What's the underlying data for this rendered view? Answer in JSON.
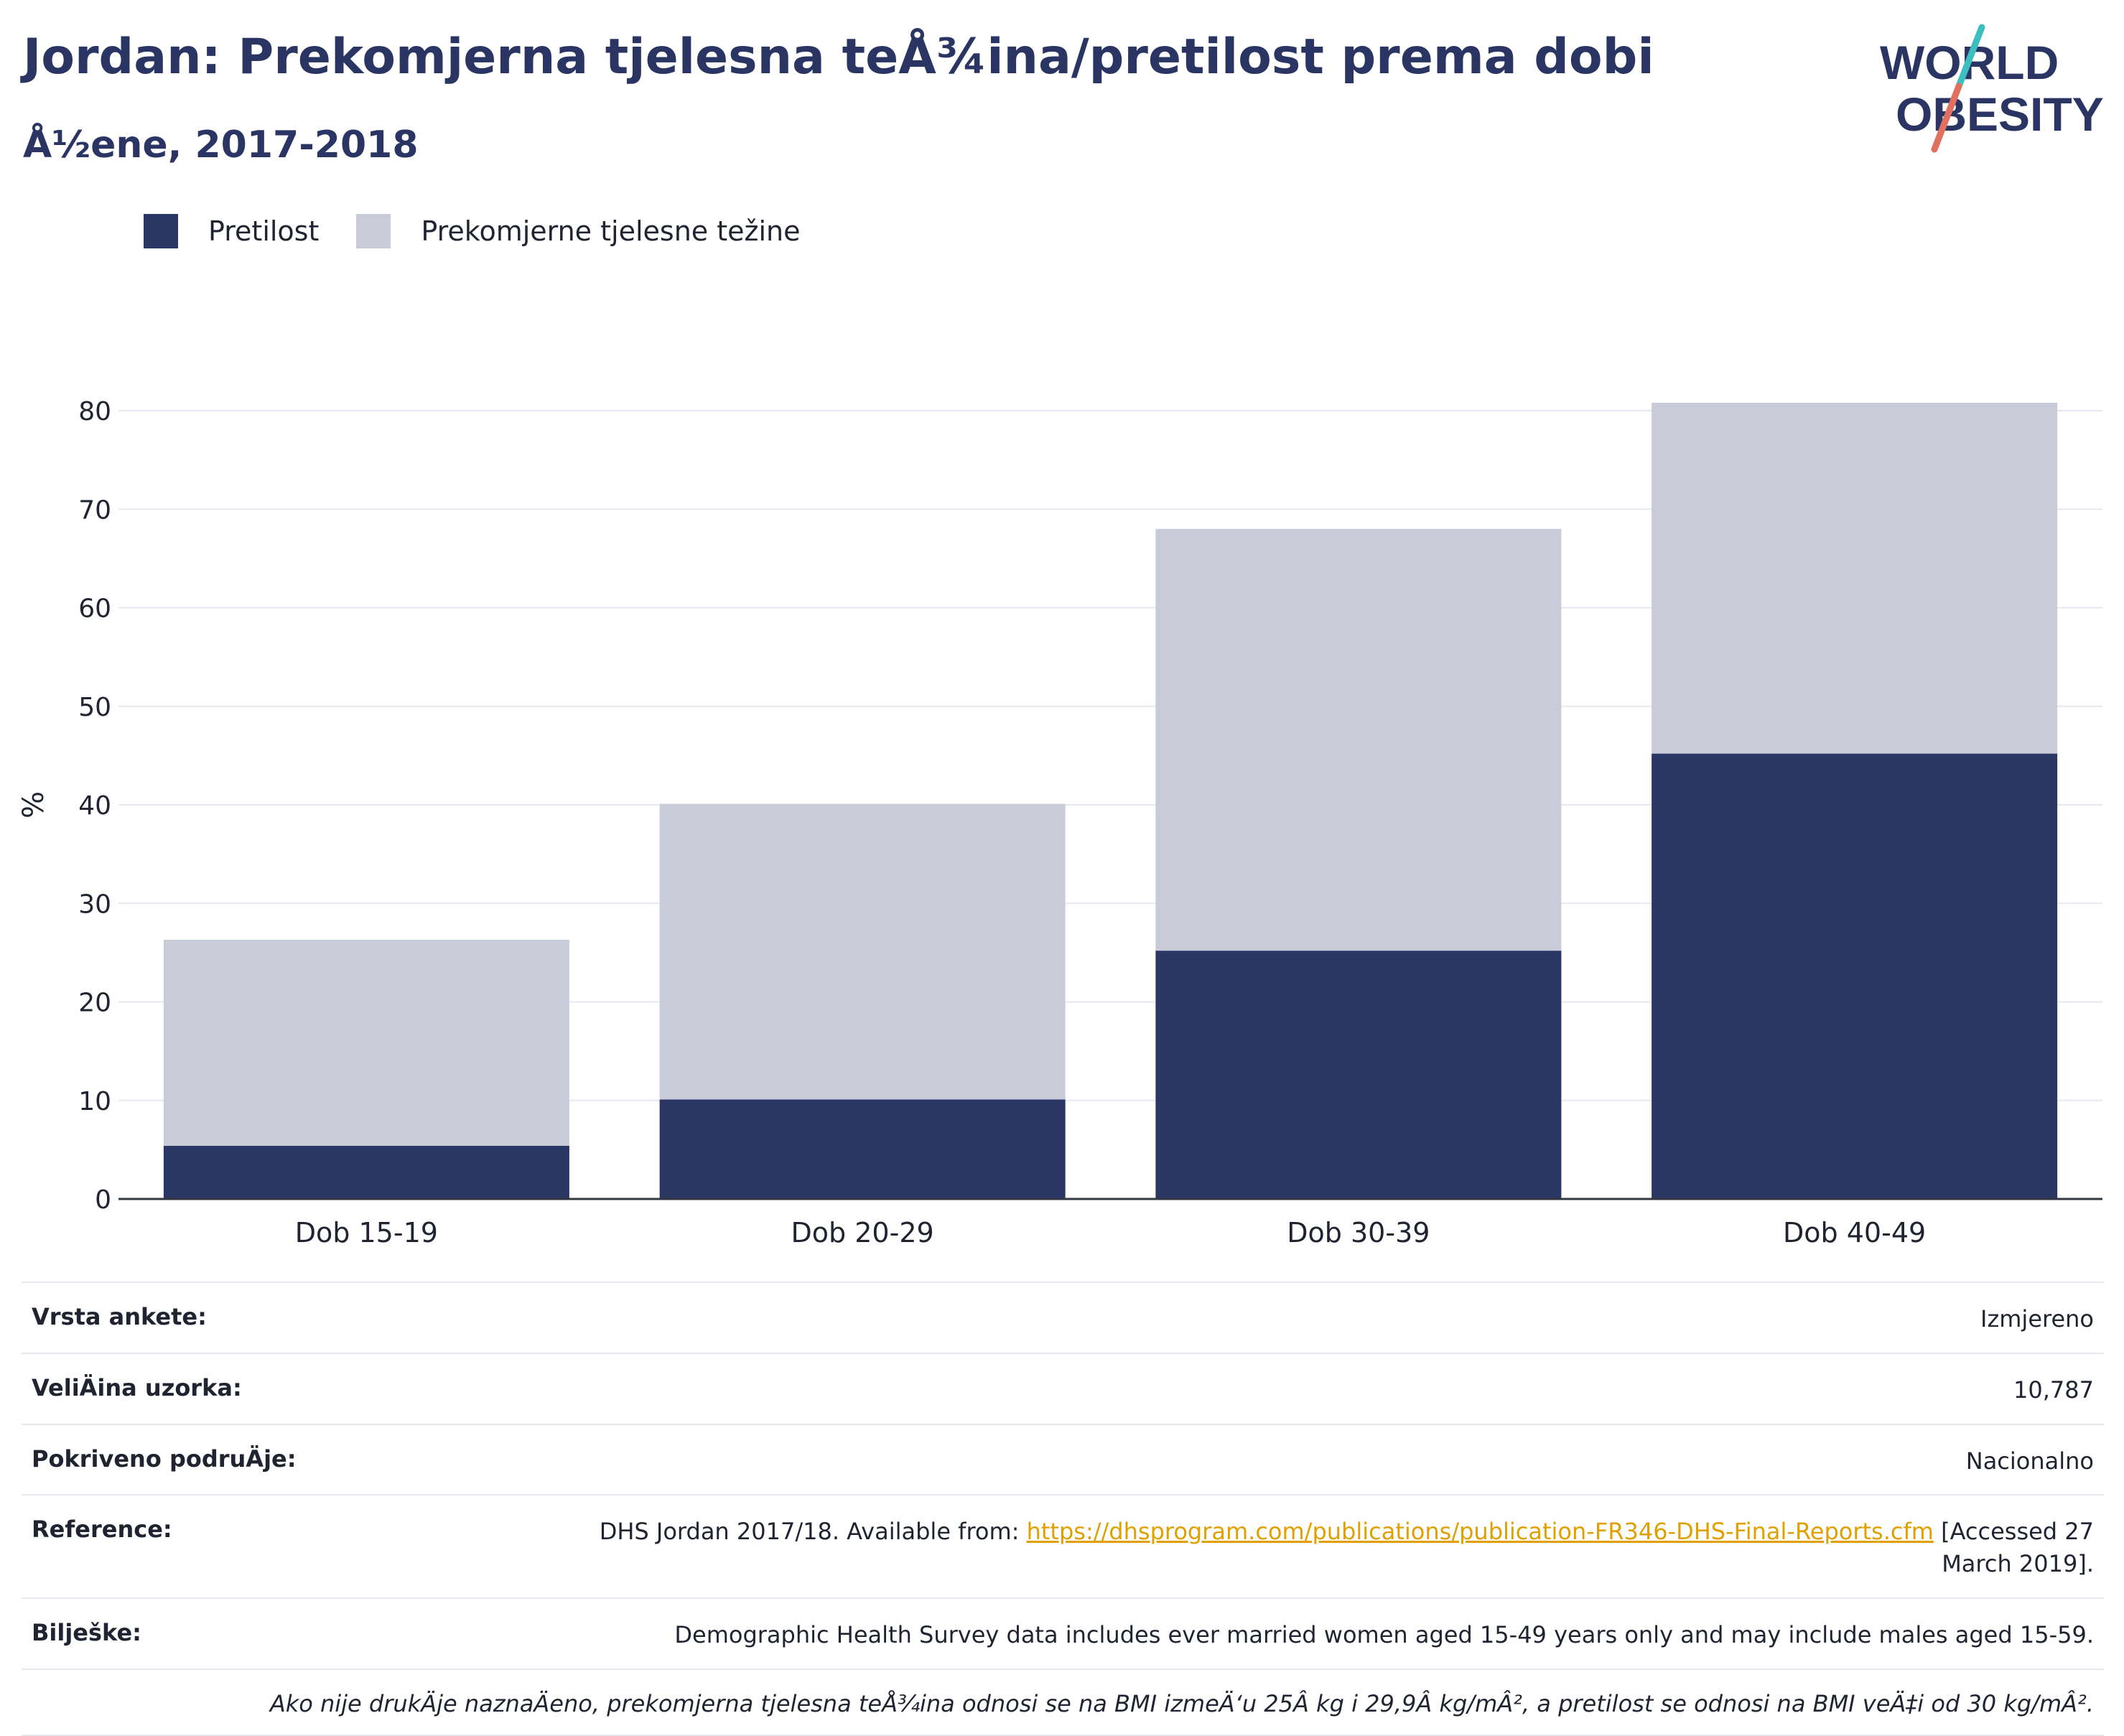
{
  "header": {
    "title": "Jordan: Prekomjerna tjelesna teÅ¾ina/pretilost prema dobi",
    "subtitle": "Å½ene, 2017-2018",
    "logo_line1": "WORLD",
    "logo_line2": "OBESITY"
  },
  "legend": {
    "obesity": "Pretilost",
    "overweight": "Prekomjerne tjelesne težine"
  },
  "colors": {
    "obesity": "#2a3663",
    "overweight": "#c9ccd8",
    "accent_teal": "#3dbfbf",
    "accent_coral": "#e2705f",
    "link": "#e0a100"
  },
  "chart_data": {
    "type": "bar",
    "stacked": true,
    "categories": [
      "Dob 15-19",
      "Dob 20-29",
      "Dob 30-39",
      "Dob 40-49"
    ],
    "series": [
      {
        "name": "Pretilost",
        "values": [
          5.4,
          10.1,
          25.2,
          45.2
        ]
      },
      {
        "name": "Prekomjerne tjelesne težine",
        "values": [
          20.9,
          30.0,
          42.8,
          35.6
        ]
      }
    ],
    "totals": [
      26.3,
      40.1,
      68.0,
      80.8
    ],
    "ylabel": "%",
    "ylim": [
      0,
      80
    ],
    "yticks": [
      0,
      10,
      20,
      30,
      40,
      50,
      60,
      70,
      80
    ],
    "grid": true,
    "legend_position": "top-left"
  },
  "info": {
    "survey_type_label": "Vrsta ankete:",
    "survey_type_value": "Izmjereno",
    "sample_size_label": "VeliÄ\u001dina uzorka:",
    "sample_size_value": "10,787",
    "coverage_label": "Pokriveno podruÄ\u001dje:",
    "coverage_value": "Nacionalno",
    "reference_label": "Reference:",
    "reference_prefix": "DHS Jordan 2017/18. Available from: ",
    "reference_link": "https://dhsprogram.com/publications/publication-FR346-DHS-Final-Reports.cfm",
    "reference_suffix": " [Accessed 27 March 2019].",
    "notes_label": "Bilješke:",
    "notes_value": "Demographic Health Survey data includes ever married women aged 15-49 years only and may include males aged 15-59.",
    "footnote": "Ako nije drukÄ\u001dje naznaÄ\u001deno, prekomjerna tjelesna teÅ¾ina odnosi se na BMI izmeÄ‘u 25Â kg i 29,9Â kg/mÂ², a pretilost se odnosi na BMI veÄ‡i od 30 kg/mÂ²."
  }
}
